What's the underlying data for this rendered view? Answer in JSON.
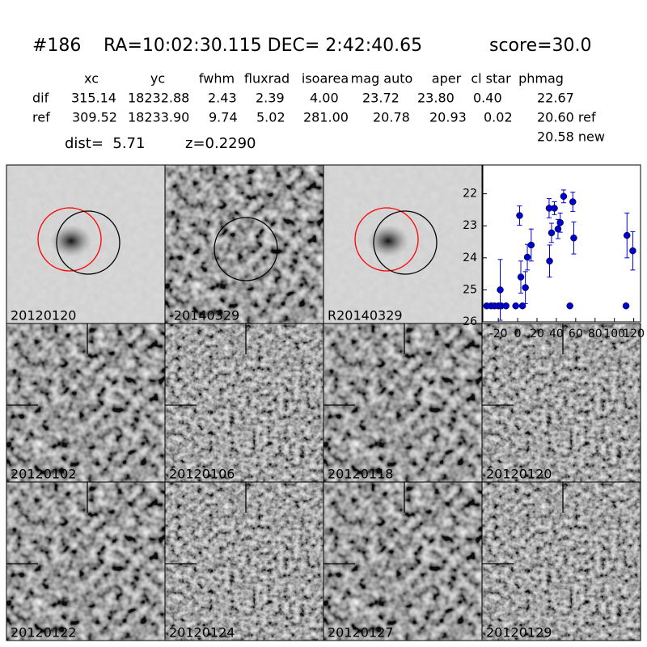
{
  "header": {
    "id": "#186",
    "coords": "RA=10:02:30.115 DEC= 2:42:40.65",
    "score": "score=30.0"
  },
  "table": {
    "columns": [
      "xc",
      "yc",
      "fwhm",
      "fluxrad",
      "isoarea",
      "mag auto",
      "aper",
      "cl star",
      "phmag"
    ],
    "rows": [
      [
        "dif",
        "315.14",
        "18232.88",
        "2.43",
        "2.39",
        "4.00",
        "23.72",
        "23.80",
        "0.40",
        "22.67"
      ],
      [
        "ref",
        "309.52",
        "18233.90",
        "9.74",
        "5.02",
        "281.00",
        "20.78",
        "20.93",
        "0.02",
        "20.60 ref"
      ]
    ],
    "extra": "20.58 new"
  },
  "dist": "dist=  5.71",
  "z": "z=0.2290",
  "panels": [
    {
      "label": "20120120"
    },
    {
      "label": "-20140329"
    },
    {
      "label": "R20140329"
    },
    {
      "label": "20120102"
    },
    {
      "label": "20120106"
    },
    {
      "label": "20120118"
    },
    {
      "label": "20120120",
      "color": "#ff0000"
    },
    {
      "label": "20120122"
    },
    {
      "label": "20120124"
    },
    {
      "label": "20120127"
    },
    {
      "label": "20120129"
    }
  ],
  "chart_data": {
    "type": "scatter",
    "color": "#0000cc",
    "x": [
      -32,
      -27.5,
      -24,
      -20,
      -17,
      -12,
      -18,
      -2,
      5,
      2,
      3.3,
      8,
      10,
      14,
      32.5,
      33,
      35,
      38,
      41.7,
      44,
      47.5,
      54,
      57,
      58,
      112,
      113,
      119
    ],
    "values": [
      25.5,
      25.5,
      25.5,
      25.5,
      25.5,
      25.5,
      25.0,
      25.5,
      25.5,
      22.68,
      24.6,
      24.93,
      23.98,
      23.6,
      22.45,
      24.1,
      23.22,
      22.45,
      23.1,
      22.9,
      22.08,
      25.5,
      22.25,
      23.38,
      25.5,
      23.3,
      23.78
    ],
    "errors": [
      null,
      null,
      null,
      null,
      null,
      null,
      0.95,
      null,
      null,
      0.3,
      0.5,
      0.5,
      0.4,
      0.5,
      0.3,
      0.5,
      0.3,
      0.2,
      0.3,
      0.3,
      0.2,
      null,
      0.3,
      0.5,
      null,
      0.7,
      0.6
    ],
    "xlim": [
      -36,
      127
    ],
    "ylim": [
      26,
      21.1
    ],
    "xticks": [
      -20,
      0,
      20,
      40,
      60,
      80,
      100,
      120
    ],
    "yticks": [
      22,
      23,
      24,
      25,
      26
    ]
  }
}
